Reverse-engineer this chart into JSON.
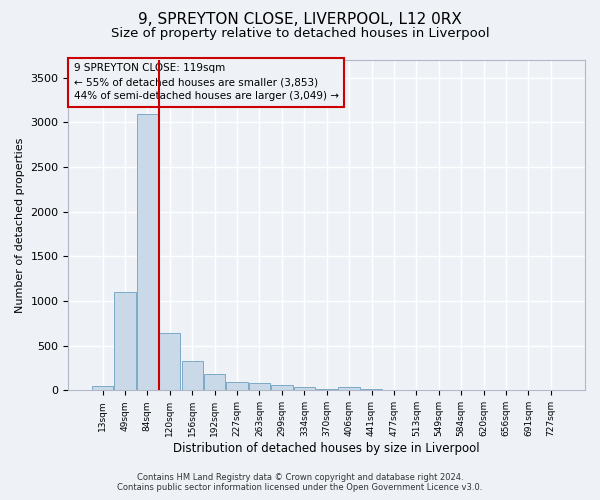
{
  "title1": "9, SPREYTON CLOSE, LIVERPOOL, L12 0RX",
  "title2": "Size of property relative to detached houses in Liverpool",
  "xlabel": "Distribution of detached houses by size in Liverpool",
  "ylabel": "Number of detached properties",
  "footnote1": "Contains HM Land Registry data © Crown copyright and database right 2024.",
  "footnote2": "Contains public sector information licensed under the Open Government Licence v3.0.",
  "annotation_line1": "9 SPREYTON CLOSE: 119sqm",
  "annotation_line2": "← 55% of detached houses are smaller (3,853)",
  "annotation_line3": "44% of semi-detached houses are larger (3,049) →",
  "bar_color": "#c9d9e8",
  "bar_edge_color": "#7aaac8",
  "vline_color": "#cc0000",
  "vline_index": 2.5,
  "ylim": [
    0,
    3700
  ],
  "yticks": [
    0,
    500,
    1000,
    1500,
    2000,
    2500,
    3000,
    3500
  ],
  "categories": [
    "13sqm",
    "49sqm",
    "84sqm",
    "120sqm",
    "156sqm",
    "192sqm",
    "227sqm",
    "263sqm",
    "299sqm",
    "334sqm",
    "370sqm",
    "406sqm",
    "441sqm",
    "477sqm",
    "513sqm",
    "549sqm",
    "584sqm",
    "620sqm",
    "656sqm",
    "691sqm",
    "727sqm"
  ],
  "values": [
    50,
    1100,
    3100,
    640,
    330,
    185,
    95,
    80,
    55,
    35,
    20,
    35,
    10,
    5,
    5,
    0,
    0,
    0,
    0,
    0,
    0
  ],
  "background_color": "#eef2f7",
  "grid_color": "#ffffff",
  "title1_fontsize": 11,
  "title2_fontsize": 9.5,
  "xlabel_fontsize": 8.5,
  "ylabel_fontsize": 8,
  "xtick_fontsize": 6.5,
  "ytick_fontsize": 8,
  "annotation_fontsize": 7.5,
  "footnote_fontsize": 6
}
